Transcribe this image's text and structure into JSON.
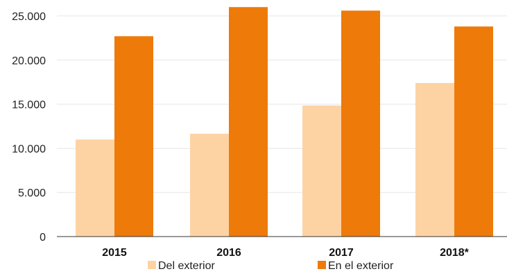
{
  "chart_data": {
    "type": "bar",
    "categories": [
      "2015",
      "2016",
      "2017",
      "2018*"
    ],
    "series": [
      {
        "name": "Del exterior",
        "color": "#fdd3a4",
        "values": [
          11000,
          11650,
          14850,
          17400
        ]
      },
      {
        "name": "En el exterior",
        "color": "#ee7a0a",
        "values": [
          22700,
          26000,
          25600,
          23800
        ]
      }
    ],
    "yticks": [
      "0",
      "5.000",
      "10.000",
      "15.000",
      "20.000",
      "25.000"
    ],
    "ytick_values": [
      0,
      5000,
      10000,
      15000,
      20000,
      25000
    ],
    "ylim": [
      0,
      26000
    ],
    "grid": true,
    "legend_position": "bottom",
    "title": "",
    "xlabel": "",
    "ylabel": ""
  }
}
